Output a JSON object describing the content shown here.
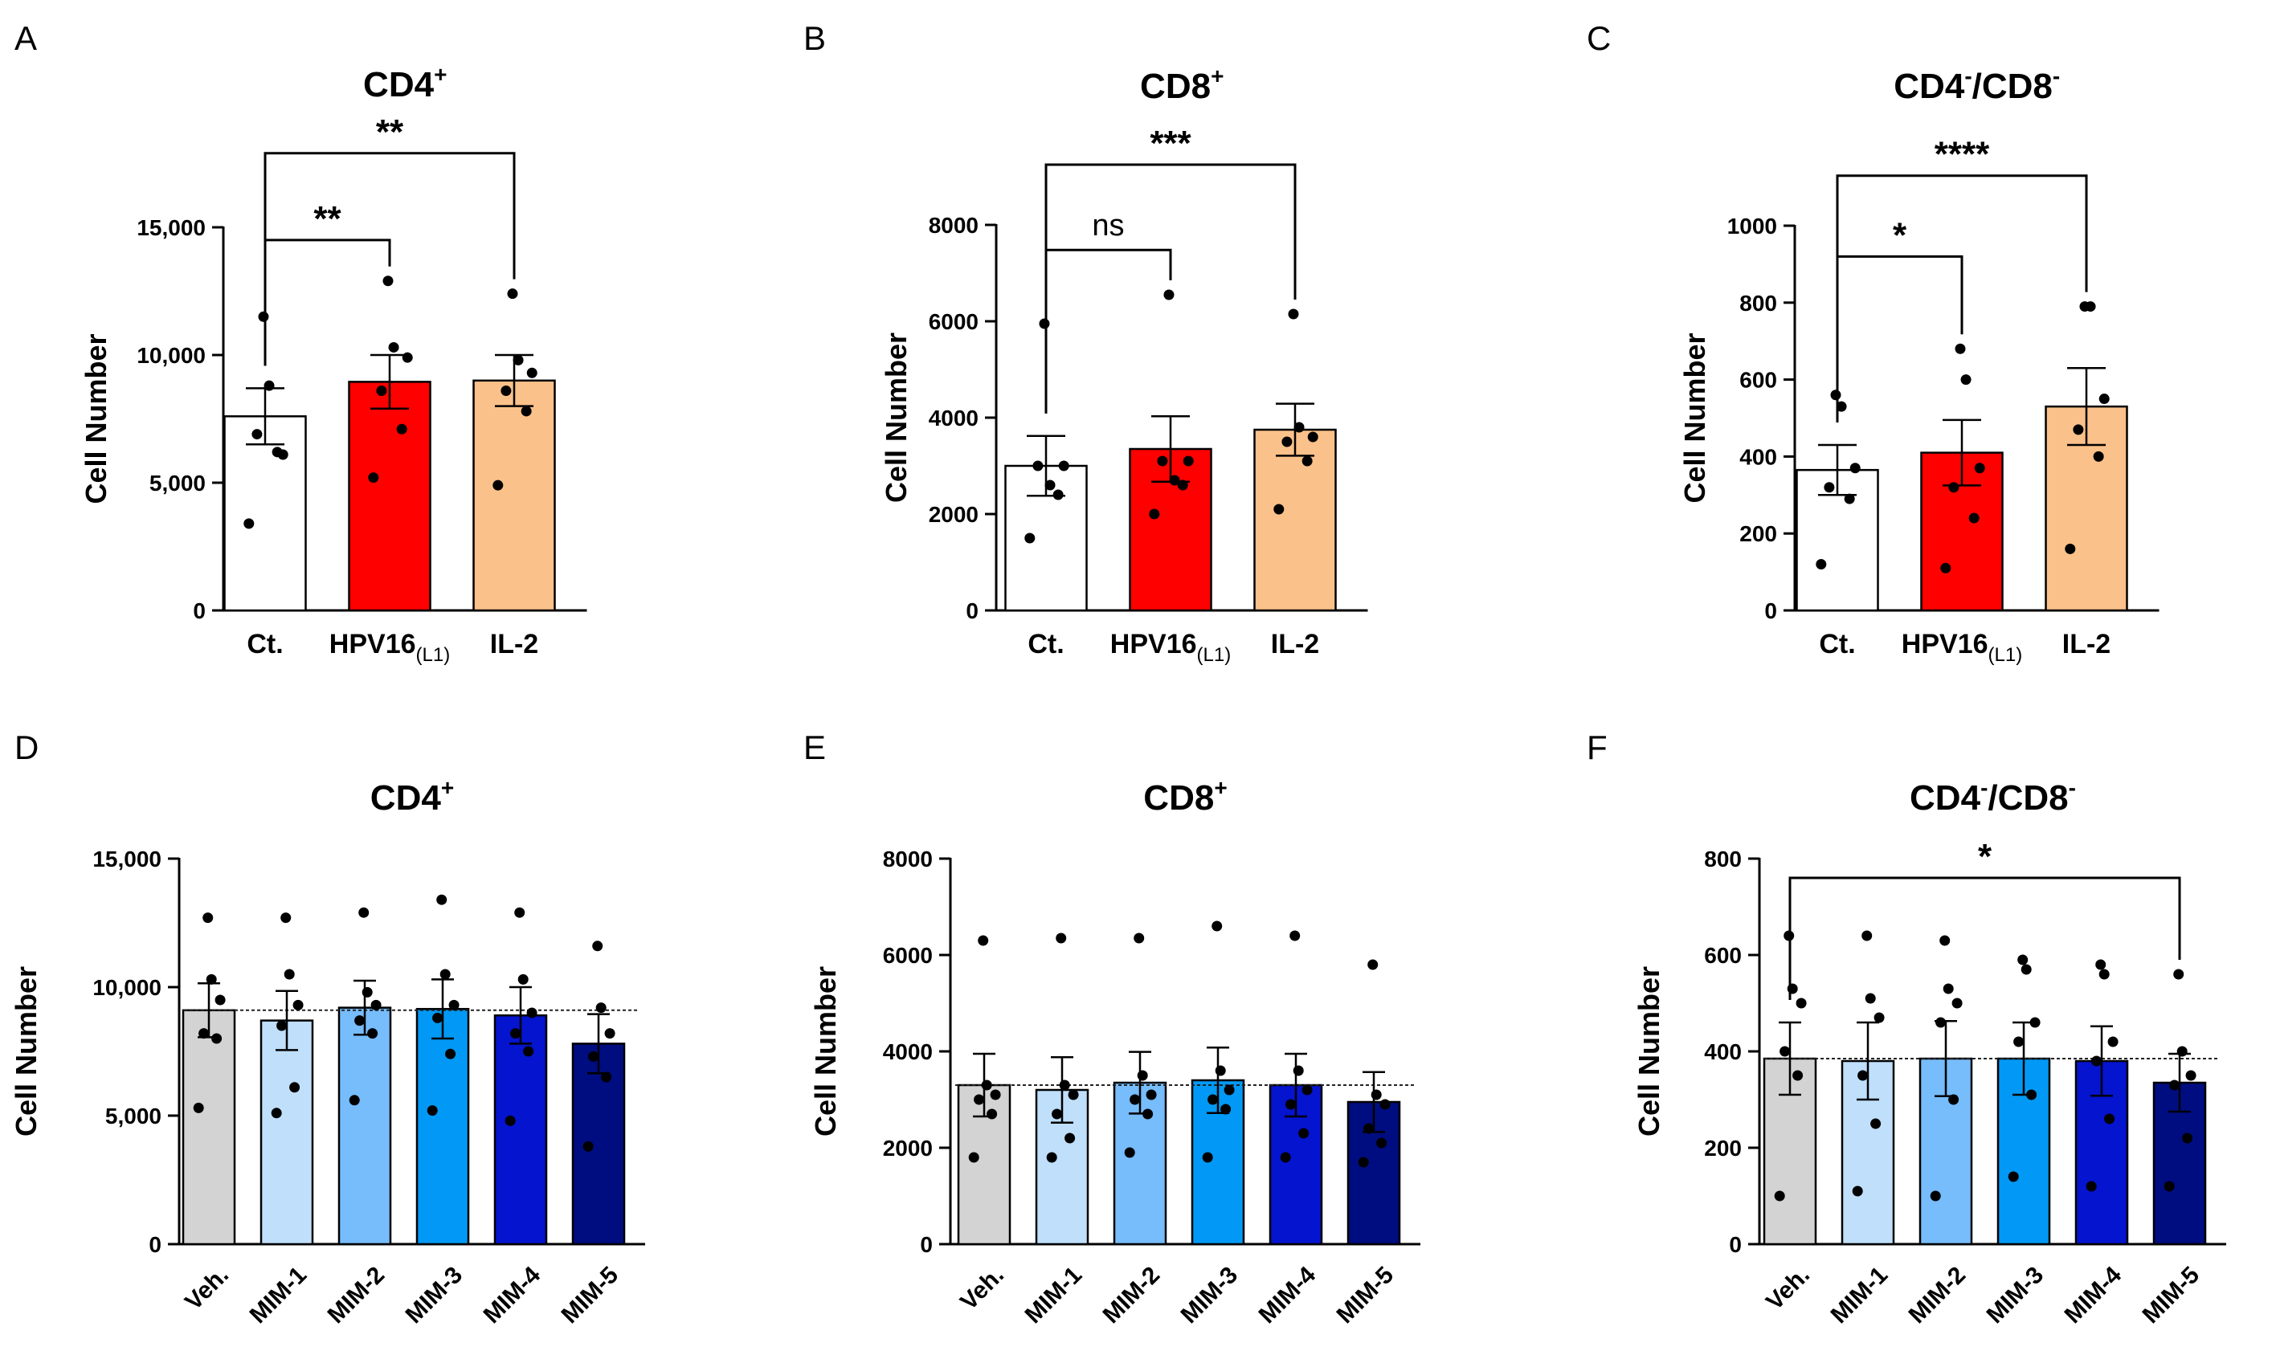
{
  "chart_data": [
    {
      "letter": "A",
      "type": "bar",
      "title": "CD4",
      "title_sup": "+",
      "title_suffix": "",
      "title_suffix_sup": "",
      "ylabel": "Cell Number",
      "ylim": [
        0,
        15000
      ],
      "yticks": [
        0,
        5000,
        10000,
        15000
      ],
      "ytick_labels": [
        "0",
        "5,000",
        "10,000",
        "15,000"
      ],
      "categories": [
        "Ct.",
        "HPV16",
        "IL-2"
      ],
      "category_subs": [
        "",
        "(L1)",
        ""
      ],
      "values": [
        7600,
        8950,
        9000
      ],
      "errors": [
        1100,
        1050,
        1000
      ],
      "colors": [
        "#ffffff",
        "#ff0000",
        "#fbc18a"
      ],
      "points": [
        [
          3400,
          6200,
          6900,
          6100,
          8800,
          11500
        ],
        [
          5200,
          7100,
          8600,
          9900,
          10300,
          12900
        ],
        [
          4900,
          7800,
          8600,
          9300,
          9800,
          12400
        ]
      ],
      "rotate_labels": false,
      "reference_line": null,
      "comparisons": [
        {
          "from": 0,
          "to": 1,
          "level": 14500,
          "label": "**"
        },
        {
          "from": 0,
          "to": 2,
          "level": 17900,
          "label": "**"
        }
      ]
    },
    {
      "letter": "B",
      "type": "bar",
      "title": "CD8",
      "title_sup": "+",
      "title_suffix": "",
      "title_suffix_sup": "",
      "ylabel": "Cell Number",
      "ylim": [
        0,
        8000
      ],
      "yticks": [
        0,
        2000,
        4000,
        6000,
        8000
      ],
      "ytick_labels": [
        "0",
        "2000",
        "4000",
        "6000",
        "8000"
      ],
      "categories": [
        "Ct.",
        "HPV16",
        "IL-2"
      ],
      "category_subs": [
        "",
        "(L1)",
        ""
      ],
      "values": [
        3000,
        3350,
        3750
      ],
      "errors": [
        620,
        680,
        540
      ],
      "colors": [
        "#ffffff",
        "#ff0000",
        "#fbc18a"
      ],
      "points": [
        [
          1500,
          2400,
          3000,
          3000,
          2600,
          5950
        ],
        [
          2000,
          2600,
          3100,
          3100,
          2700,
          6550
        ],
        [
          2100,
          3100,
          3500,
          3600,
          3800,
          6150
        ]
      ],
      "rotate_labels": false,
      "reference_line": null,
      "comparisons": [
        {
          "from": 0,
          "to": 1,
          "level": 7480,
          "label": "ns"
        },
        {
          "from": 0,
          "to": 2,
          "level": 9250,
          "label": "***"
        }
      ]
    },
    {
      "letter": "C",
      "type": "bar",
      "title": "CD4",
      "title_sup": "-",
      "title_suffix": "/CD8",
      "title_suffix_sup": "-",
      "ylabel": "Cell Number",
      "ylim": [
        0,
        1000
      ],
      "yticks": [
        0,
        200,
        400,
        600,
        800,
        1000
      ],
      "ytick_labels": [
        "0",
        "200",
        "400",
        "600",
        "800",
        "1000"
      ],
      "categories": [
        "Ct.",
        "HPV16",
        "IL-2"
      ],
      "category_subs": [
        "",
        "(L1)",
        ""
      ],
      "values": [
        365,
        410,
        530
      ],
      "errors": [
        65,
        85,
        100
      ],
      "colors": [
        "#ffffff",
        "#ff0000",
        "#fbc18a"
      ],
      "points": [
        [
          120,
          290,
          320,
          370,
          530,
          560
        ],
        [
          110,
          240,
          320,
          370,
          600,
          680
        ],
        [
          160,
          400,
          470,
          550,
          790,
          790
        ]
      ],
      "rotate_labels": false,
      "reference_line": null,
      "comparisons": [
        {
          "from": 0,
          "to": 1,
          "level": 920,
          "label": "*"
        },
        {
          "from": 0,
          "to": 2,
          "level": 1130,
          "label": "****"
        }
      ]
    },
    {
      "letter": "D",
      "type": "bar",
      "title": "CD4",
      "title_sup": "+",
      "title_suffix": "",
      "title_suffix_sup": "",
      "ylabel": "Cell Number",
      "ylim": [
        0,
        15000
      ],
      "yticks": [
        0,
        5000,
        10000,
        15000
      ],
      "ytick_labels": [
        "0",
        "5,000",
        "10,000",
        "15,000"
      ],
      "categories": [
        "Veh.",
        "MIM-1",
        "MIM-2",
        "MIM-3",
        "MIM-4",
        "MIM-5"
      ],
      "category_subs": [
        "",
        "",
        "",
        "",
        "",
        ""
      ],
      "values": [
        9100,
        8700,
        9200,
        9150,
        8900,
        7800
      ],
      "errors": [
        1050,
        1150,
        1050,
        1150,
        1100,
        1150
      ],
      "colors": [
        "#d3d3d3",
        "#bfdffb",
        "#77bcfb",
        "#0199f5",
        "#0414cf",
        "#000d80"
      ],
      "points": [
        [
          5300,
          8000,
          8200,
          9500,
          10300,
          12700
        ],
        [
          5100,
          6100,
          8500,
          9300,
          10500,
          12700
        ],
        [
          5600,
          8200,
          8700,
          9300,
          9800,
          12900
        ],
        [
          5200,
          7400,
          8800,
          9300,
          10500,
          13400
        ],
        [
          4800,
          7500,
          8200,
          9000,
          10300,
          12900
        ],
        [
          3800,
          6500,
          7300,
          8200,
          9200,
          11600
        ]
      ],
      "rotate_labels": true,
      "reference_line": 9100,
      "comparisons": []
    },
    {
      "letter": "E",
      "type": "bar",
      "title": "CD8",
      "title_sup": "+",
      "title_suffix": "",
      "title_suffix_sup": "",
      "ylabel": "Cell Number",
      "ylim": [
        0,
        8000
      ],
      "yticks": [
        0,
        2000,
        4000,
        6000,
        8000
      ],
      "ytick_labels": [
        "0",
        "2000",
        "4000",
        "6000",
        "8000"
      ],
      "categories": [
        "Veh.",
        "MIM-1",
        "MIM-2",
        "MIM-3",
        "MIM-4",
        "MIM-5"
      ],
      "category_subs": [
        "",
        "",
        "",
        "",
        "",
        ""
      ],
      "values": [
        3300,
        3200,
        3350,
        3400,
        3300,
        2950
      ],
      "errors": [
        650,
        680,
        640,
        680,
        650,
        620
      ],
      "colors": [
        "#d3d3d3",
        "#bfdffb",
        "#77bcfb",
        "#0199f5",
        "#0414cf",
        "#000d80"
      ],
      "points": [
        [
          1800,
          2700,
          3000,
          3100,
          3300,
          6300
        ],
        [
          1800,
          2200,
          2700,
          3100,
          3300,
          6350
        ],
        [
          1900,
          2700,
          3000,
          3100,
          3500,
          6350
        ],
        [
          1800,
          2800,
          3000,
          3200,
          3600,
          6600
        ],
        [
          1800,
          2300,
          2900,
          3200,
          3600,
          6400
        ],
        [
          1700,
          2100,
          2400,
          2900,
          3100,
          5800
        ]
      ],
      "rotate_labels": true,
      "reference_line": 3300,
      "comparisons": []
    },
    {
      "letter": "F",
      "type": "bar",
      "title": "CD4",
      "title_sup": "-",
      "title_suffix": "/CD8",
      "title_suffix_sup": "-",
      "ylabel": "Cell Number",
      "ylim": [
        0,
        800
      ],
      "yticks": [
        0,
        200,
        400,
        600,
        800
      ],
      "ytick_labels": [
        "0",
        "200",
        "400",
        "600",
        "800"
      ],
      "categories": [
        "Veh.",
        "MIM-1",
        "MIM-2",
        "MIM-3",
        "MIM-4",
        "MIM-5"
      ],
      "category_subs": [
        "",
        "",
        "",
        "",
        "",
        ""
      ],
      "values": [
        385,
        380,
        385,
        385,
        380,
        335
      ],
      "errors": [
        75,
        80,
        78,
        75,
        72,
        60
      ],
      "colors": [
        "#d3d3d3",
        "#bfdffb",
        "#77bcfb",
        "#0199f5",
        "#0414cf",
        "#000d80"
      ],
      "points": [
        [
          100,
          350,
          400,
          500,
          530,
          640
        ],
        [
          110,
          250,
          350,
          470,
          510,
          640
        ],
        [
          100,
          300,
          460,
          500,
          530,
          630
        ],
        [
          140,
          310,
          420,
          460,
          570,
          590
        ],
        [
          120,
          260,
          380,
          420,
          560,
          580
        ],
        [
          120,
          220,
          330,
          350,
          400,
          560
        ]
      ],
      "rotate_labels": true,
      "reference_line": 385,
      "comparisons": [
        {
          "from": 0,
          "to": 5,
          "level": 760,
          "label": "*"
        }
      ]
    }
  ]
}
